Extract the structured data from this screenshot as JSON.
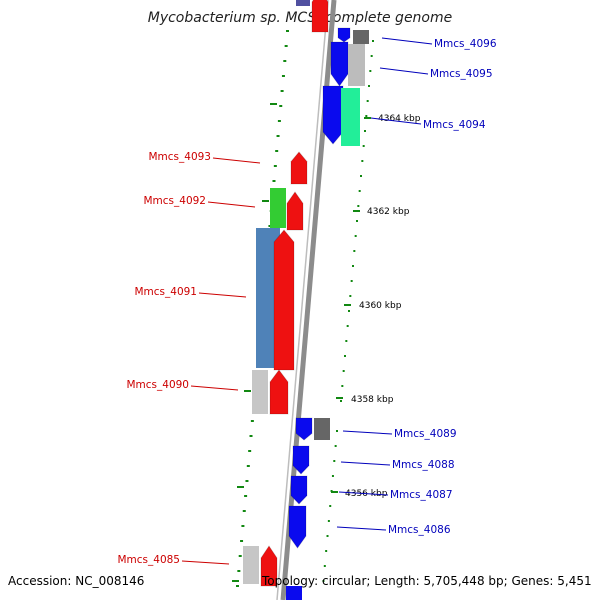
{
  "title": "Mycobacterium sp. MCS, complete genome",
  "footer": {
    "accession": "Accession: NC_008146",
    "summary": "Topology: circular; Length: 5,705,448 bp; Genes: 5,451"
  },
  "colors": {
    "forward_label": "#cc0000",
    "reverse_label": "#0000bb",
    "backbone": "#8c8c8c",
    "tick": "#118811"
  },
  "ruler_labels": [
    {
      "text": "4364 kbp"
    },
    {
      "text": "4362 kbp"
    },
    {
      "text": "4360 kbp"
    },
    {
      "text": "4358 kbp"
    },
    {
      "text": "4356 kbp"
    }
  ],
  "genes": [
    {
      "name": "Mmcs_4096",
      "strand": "reverse"
    },
    {
      "name": "Mmcs_4095",
      "strand": "reverse"
    },
    {
      "name": "Mmcs_4094",
      "strand": "reverse"
    },
    {
      "name": "Mmcs_4093",
      "strand": "forward"
    },
    {
      "name": "Mmcs_4092",
      "strand": "forward"
    },
    {
      "name": "Mmcs_4091",
      "strand": "forward"
    },
    {
      "name": "Mmcs_4090",
      "strand": "forward"
    },
    {
      "name": "Mmcs_4089",
      "strand": "reverse"
    },
    {
      "name": "Mmcs_4088",
      "strand": "reverse"
    },
    {
      "name": "Mmcs_4087",
      "strand": "reverse"
    },
    {
      "name": "Mmcs_4086",
      "strand": "reverse"
    },
    {
      "name": "Mmcs_4085",
      "strand": "forward"
    }
  ]
}
